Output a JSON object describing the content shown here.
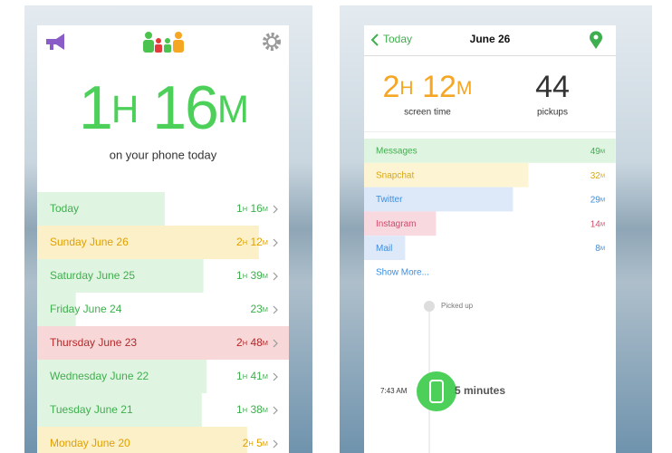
{
  "left": {
    "total": "1H 16M",
    "caption": "on your phone today",
    "days": [
      {
        "label": "Today",
        "duration": "1H 16M",
        "minutes": 76,
        "bar_color": "#e0f5e1",
        "text_color": "#3fae4e"
      },
      {
        "label": "Sunday June 26",
        "duration": "2H 12M",
        "minutes": 132,
        "bar_color": "#fcf0c8",
        "text_color": "#e0a000"
      },
      {
        "label": "Saturday June 25",
        "duration": "1H 39M",
        "minutes": 99,
        "bar_color": "#e0f5e1",
        "text_color": "#3fae4e"
      },
      {
        "label": "Friday June 24",
        "duration": "23M",
        "minutes": 23,
        "bar_color": "#e0f5e1",
        "text_color": "#3fae4e"
      },
      {
        "label": "Thursday June 23",
        "duration": "2H 48M",
        "minutes": 168,
        "bar_color": "#f7d7d7",
        "text_color": "#b5282a"
      },
      {
        "label": "Wednesday June 22",
        "duration": "1H 41M",
        "minutes": 101,
        "bar_color": "#e0f5e1",
        "text_color": "#3fae4e"
      },
      {
        "label": "Tuesday June 21",
        "duration": "1H 38M",
        "minutes": 98,
        "bar_color": "#e0f5e1",
        "text_color": "#3fae4e"
      },
      {
        "label": "Monday June 20",
        "duration": "2H 5M",
        "minutes": 125,
        "bar_color": "#fcf0c8",
        "text_color": "#e0a000"
      }
    ]
  },
  "right": {
    "back": "Today",
    "title": "June 26",
    "screen_time": "2H 12M",
    "screen_time_label": "screen time",
    "pickups": "44",
    "pickups_label": "pickups",
    "apps": [
      {
        "name": "Messages",
        "duration": "49M",
        "minutes": 49,
        "bar_color": "#e0f5e1",
        "text_color": "#3fae4e"
      },
      {
        "name": "Snapchat",
        "duration": "32M",
        "minutes": 32,
        "bar_color": "#fcf4d2",
        "text_color": "#d9a818"
      },
      {
        "name": "Twitter",
        "duration": "29M",
        "minutes": 29,
        "bar_color": "#dde9f9",
        "text_color": "#3b8ee0"
      },
      {
        "name": "Instagram",
        "duration": "14M",
        "minutes": 14,
        "bar_color": "#f7d9df",
        "text_color": "#d24a6a"
      },
      {
        "name": "Mail",
        "duration": "8M",
        "minutes": 8,
        "bar_color": "#dde9f9",
        "text_color": "#3b8ee0"
      }
    ],
    "show_more": "Show More...",
    "picked_up": "Picked up",
    "time": "7:43 AM",
    "session": "5 minutes"
  }
}
